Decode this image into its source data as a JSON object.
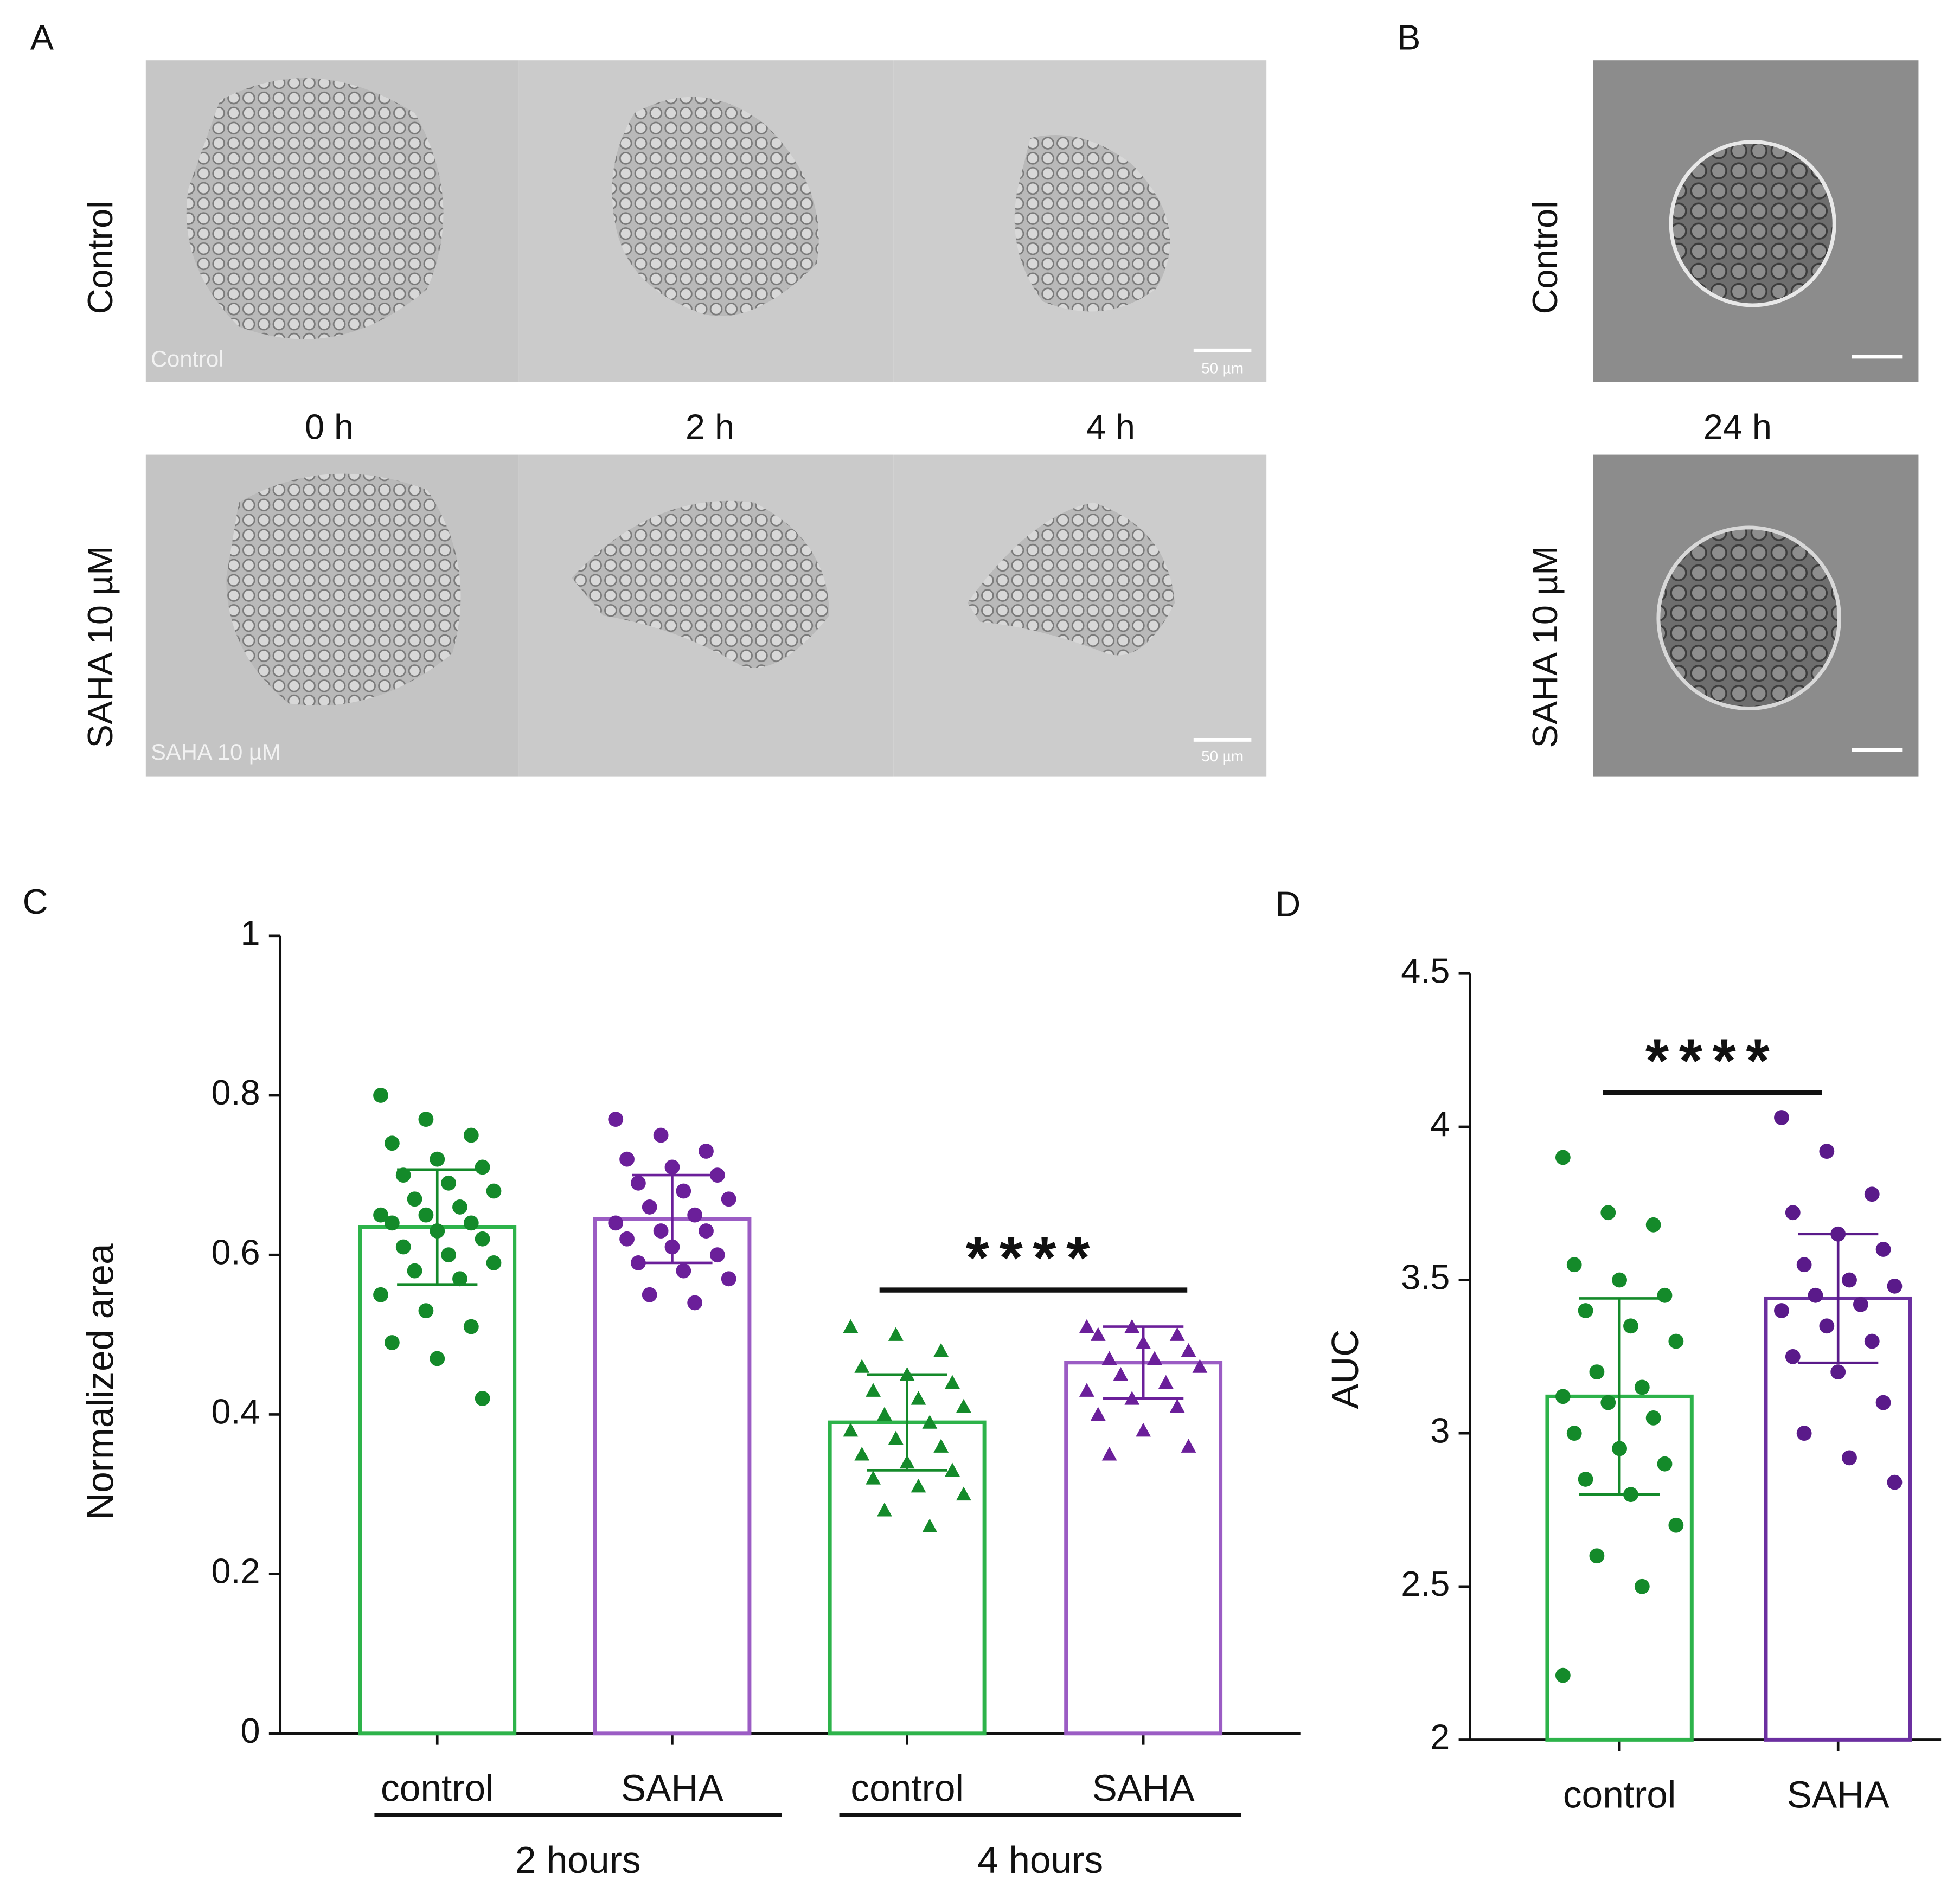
{
  "panels": {
    "A": {
      "letter": "A",
      "row_labels": [
        "Control",
        "SAHA 10 µM"
      ],
      "time_labels": [
        "0 h",
        "2 h",
        "4 h"
      ],
      "image_labels": [
        "Control",
        "SAHA 10 µM"
      ],
      "scale_bar": "50 µm"
    },
    "B": {
      "letter": "B",
      "row_labels": [
        "Control",
        "SAHA 10 µM"
      ],
      "time_label": "24 h"
    }
  },
  "chart_data": [
    {
      "type": "bar",
      "panel_label": "C",
      "ylabel": "Normalized area",
      "categories": [
        "control",
        "SAHA",
        "control",
        "SAHA"
      ],
      "group_labels": [
        "2 hours",
        "4 hours"
      ],
      "significance": "****",
      "values": [
        0.635,
        0.645,
        0.39,
        0.465
      ],
      "error": [
        0.072,
        0.055,
        0.06,
        0.045
      ],
      "points": [
        [
          0.8,
          0.77,
          0.75,
          0.74,
          0.72,
          0.71,
          0.7,
          0.69,
          0.68,
          0.67,
          0.66,
          0.65,
          0.65,
          0.64,
          0.64,
          0.63,
          0.62,
          0.61,
          0.6,
          0.59,
          0.58,
          0.57,
          0.55,
          0.53,
          0.51,
          0.49,
          0.47,
          0.42
        ],
        [
          0.77,
          0.75,
          0.73,
          0.72,
          0.71,
          0.7,
          0.69,
          0.68,
          0.67,
          0.66,
          0.65,
          0.64,
          0.63,
          0.63,
          0.62,
          0.61,
          0.6,
          0.59,
          0.58,
          0.57,
          0.55,
          0.54
        ],
        [
          0.51,
          0.5,
          0.48,
          0.46,
          0.45,
          0.44,
          0.43,
          0.42,
          0.41,
          0.4,
          0.39,
          0.38,
          0.37,
          0.36,
          0.35,
          0.34,
          0.33,
          0.32,
          0.31,
          0.3,
          0.28,
          0.26
        ],
        [
          0.51,
          0.51,
          0.5,
          0.5,
          0.49,
          0.48,
          0.47,
          0.47,
          0.46,
          0.45,
          0.44,
          0.43,
          0.42,
          0.41,
          0.4,
          0.38,
          0.36,
          0.35
        ]
      ],
      "markers": [
        "circle",
        "circle",
        "triangle",
        "triangle"
      ],
      "colors": [
        "#148a2a",
        "#6b1f9a",
        "#148a2a",
        "#6b1f9a"
      ],
      "bar_colors": [
        "#2db34a",
        "#9b5cc4",
        "#2db34a",
        "#9b5cc4"
      ],
      "ylim": [
        0,
        1
      ],
      "yticks": [
        0,
        0.2,
        0.4,
        0.6,
        0.8,
        1
      ]
    },
    {
      "type": "bar",
      "panel_label": "D",
      "ylabel": "AUC",
      "categories": [
        "control",
        "SAHA"
      ],
      "significance": "****",
      "values": [
        3.12,
        3.44
      ],
      "error": [
        0.32,
        0.21
      ],
      "points": [
        [
          3.9,
          3.72,
          3.68,
          3.55,
          3.5,
          3.45,
          3.4,
          3.35,
          3.3,
          3.2,
          3.15,
          3.12,
          3.1,
          3.05,
          3.0,
          2.95,
          2.9,
          2.85,
          2.8,
          2.7,
          2.6,
          2.5,
          2.21
        ],
        [
          4.03,
          3.92,
          3.78,
          3.72,
          3.65,
          3.6,
          3.55,
          3.5,
          3.48,
          3.45,
          3.42,
          3.4,
          3.35,
          3.3,
          3.25,
          3.2,
          3.1,
          3.0,
          2.92,
          2.84
        ]
      ],
      "markers": [
        "circle",
        "circle"
      ],
      "colors": [
        "#148a2a",
        "#5a1a8a"
      ],
      "bar_colors": [
        "#2db34a",
        "#6b2fa0"
      ],
      "ylim": [
        2,
        4.5
      ],
      "yticks": [
        2,
        2.5,
        3,
        3.5,
        4,
        4.5
      ]
    }
  ]
}
